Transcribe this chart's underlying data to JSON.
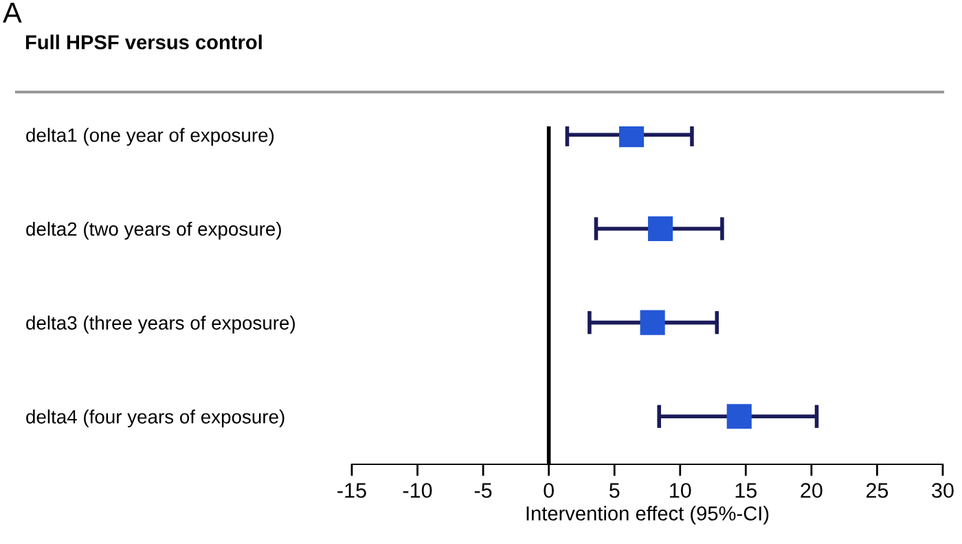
{
  "chart_data": {
    "type": "scatter",
    "orientation": "horizontal",
    "title": "Full HPSF versus control",
    "xlabel": "Intervention effect (95%-CI)",
    "annotations": [
      "A"
    ],
    "categories": [
      "delta1 (one year of exposure)",
      "delta2 (two years of exposure)",
      "delta3 (three years of exposure)",
      "delta4 (four years of exposure)"
    ],
    "series": [
      {
        "color": "#2457d6",
        "values": [
          6.3,
          8.5,
          7.9,
          14.5
        ],
        "errors": [
          [
            1.4,
            10.9
          ],
          [
            3.6,
            13.2
          ],
          [
            3.1,
            12.8
          ],
          [
            8.4,
            20.4
          ]
        ]
      }
    ],
    "marker": "square",
    "xlim": [
      -15,
      30
    ],
    "xticks": [
      -15,
      -10,
      -5,
      0,
      5,
      10,
      15,
      20,
      25,
      30
    ],
    "ref_lines": [
      {
        "axis": "x",
        "value": 0,
        "color": "#000000"
      }
    ],
    "grid": false,
    "legend": false
  }
}
